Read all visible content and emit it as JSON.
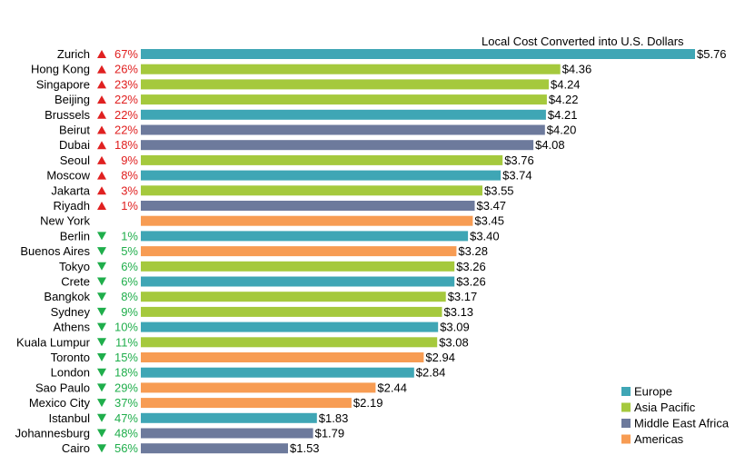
{
  "chart_data": {
    "type": "bar",
    "orientation": "horizontal",
    "annotation": "Local Cost Converted into U.S. Dollars",
    "value_prefix": "$",
    "grid": false,
    "legend_position": "bottom-right",
    "groups": [
      {
        "name": "Europe",
        "color": "#3fa6b5"
      },
      {
        "name": "Asia Pacific",
        "color": "#a5c93d"
      },
      {
        "name": "Middle East Africa",
        "color": "#6d7a9c"
      },
      {
        "name": "Americas",
        "color": "#f79c53"
      }
    ],
    "change_colors": {
      "up": "#e02020",
      "down": "#1fae4b"
    },
    "rows": [
      {
        "city": "Zurich",
        "dir": "up",
        "change": "67%",
        "value": 5.76,
        "label": "$5.76",
        "group": "Europe"
      },
      {
        "city": "Hong Kong",
        "dir": "up",
        "change": "26%",
        "value": 4.36,
        "label": "$4.36",
        "group": "Asia Pacific"
      },
      {
        "city": "Singapore",
        "dir": "up",
        "change": "23%",
        "value": 4.24,
        "label": "$4.24",
        "group": "Asia Pacific"
      },
      {
        "city": "Beijing",
        "dir": "up",
        "change": "22%",
        "value": 4.22,
        "label": "$4.22",
        "group": "Asia Pacific"
      },
      {
        "city": "Brussels",
        "dir": "up",
        "change": "22%",
        "value": 4.21,
        "label": "$4.21",
        "group": "Europe"
      },
      {
        "city": "Beirut",
        "dir": "up",
        "change": "22%",
        "value": 4.2,
        "label": "$4.20",
        "group": "Middle East Africa"
      },
      {
        "city": "Dubai",
        "dir": "up",
        "change": "18%",
        "value": 4.08,
        "label": "$4.08",
        "group": "Middle East Africa"
      },
      {
        "city": "Seoul",
        "dir": "up",
        "change": "9%",
        "value": 3.76,
        "label": "$3.76",
        "group": "Asia Pacific"
      },
      {
        "city": "Moscow",
        "dir": "up",
        "change": "8%",
        "value": 3.74,
        "label": "$3.74",
        "group": "Europe"
      },
      {
        "city": "Jakarta",
        "dir": "up",
        "change": "3%",
        "value": 3.55,
        "label": "$3.55",
        "group": "Asia Pacific"
      },
      {
        "city": "Riyadh",
        "dir": "up",
        "change": "1%",
        "value": 3.47,
        "label": "$3.47",
        "group": "Middle East Africa"
      },
      {
        "city": "New York",
        "dir": "",
        "change": "",
        "value": 3.45,
        "label": "$3.45",
        "group": "Americas"
      },
      {
        "city": "Berlin",
        "dir": "down",
        "change": "1%",
        "value": 3.4,
        "label": "$3.40",
        "group": "Europe"
      },
      {
        "city": "Buenos Aires",
        "dir": "down",
        "change": "5%",
        "value": 3.28,
        "label": "$3.28",
        "group": "Americas"
      },
      {
        "city": "Tokyo",
        "dir": "down",
        "change": "6%",
        "value": 3.26,
        "label": "$3.26",
        "group": "Asia Pacific"
      },
      {
        "city": "Crete",
        "dir": "down",
        "change": "6%",
        "value": 3.26,
        "label": "$3.26",
        "group": "Europe"
      },
      {
        "city": "Bangkok",
        "dir": "down",
        "change": "8%",
        "value": 3.17,
        "label": "$3.17",
        "group": "Asia Pacific"
      },
      {
        "city": "Sydney",
        "dir": "down",
        "change": "9%",
        "value": 3.13,
        "label": "$3.13",
        "group": "Asia Pacific"
      },
      {
        "city": "Athens",
        "dir": "down",
        "change": "10%",
        "value": 3.09,
        "label": "$3.09",
        "group": "Europe"
      },
      {
        "city": "Kuala Lumpur",
        "dir": "down",
        "change": "11%",
        "value": 3.08,
        "label": "$3.08",
        "group": "Asia Pacific"
      },
      {
        "city": "Toronto",
        "dir": "down",
        "change": "15%",
        "value": 2.94,
        "label": "$2.94",
        "group": "Americas"
      },
      {
        "city": "London",
        "dir": "down",
        "change": "18%",
        "value": 2.84,
        "label": "$2.84",
        "group": "Europe"
      },
      {
        "city": "Sao Paulo",
        "dir": "down",
        "change": "29%",
        "value": 2.44,
        "label": "$2.44",
        "group": "Americas"
      },
      {
        "city": "Mexico City",
        "dir": "down",
        "change": "37%",
        "value": 2.19,
        "label": "$2.19",
        "group": "Americas"
      },
      {
        "city": "Istanbul",
        "dir": "down",
        "change": "47%",
        "value": 1.83,
        "label": "$1.83",
        "group": "Europe"
      },
      {
        "city": "Johannesburg",
        "dir": "down",
        "change": "48%",
        "value": 1.79,
        "label": "$1.79",
        "group": "Middle East Africa"
      },
      {
        "city": "Cairo",
        "dir": "down",
        "change": "56%",
        "value": 1.53,
        "label": "$1.53",
        "group": "Middle East Africa"
      }
    ]
  }
}
